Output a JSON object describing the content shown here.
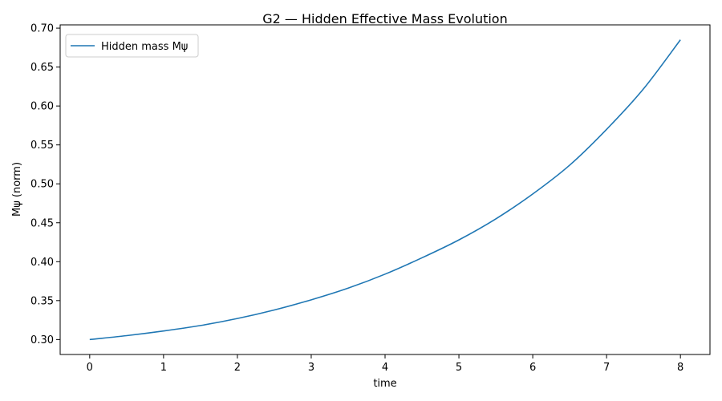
{
  "chart_data": {
    "type": "line",
    "title": "G2 — Hidden Effective Mass Evolution",
    "xlabel": "time",
    "ylabel": "Mψ (norm)",
    "xlim": [
      -0.4,
      8.4
    ],
    "ylim": [
      0.2808,
      0.7042
    ],
    "xticks": [
      0,
      1,
      2,
      3,
      4,
      5,
      6,
      7,
      8
    ],
    "yticks": [
      0.3,
      0.35,
      0.4,
      0.45,
      0.5,
      0.55,
      0.6,
      0.65,
      0.7
    ],
    "xtick_labels": [
      "0",
      "1",
      "2",
      "3",
      "4",
      "5",
      "6",
      "7",
      "8"
    ],
    "ytick_labels": [
      "0.30",
      "0.35",
      "0.40",
      "0.45",
      "0.50",
      "0.55",
      "0.60",
      "0.65",
      "0.70"
    ],
    "grid": false,
    "legend_position": "upper-left",
    "series": [
      {
        "name": "Hidden mass Mψ",
        "color": "#1f77b4",
        "x": [
          0,
          0.5,
          1,
          1.5,
          2,
          2.5,
          3,
          3.5,
          4,
          4.5,
          5,
          5.5,
          6,
          6.5,
          7,
          7.5,
          8
        ],
        "y": [
          0.3,
          0.305,
          0.311,
          0.318,
          0.327,
          0.338,
          0.351,
          0.366,
          0.384,
          0.405,
          0.428,
          0.455,
          0.487,
          0.524,
          0.57,
          0.622,
          0.685
        ]
      }
    ]
  }
}
